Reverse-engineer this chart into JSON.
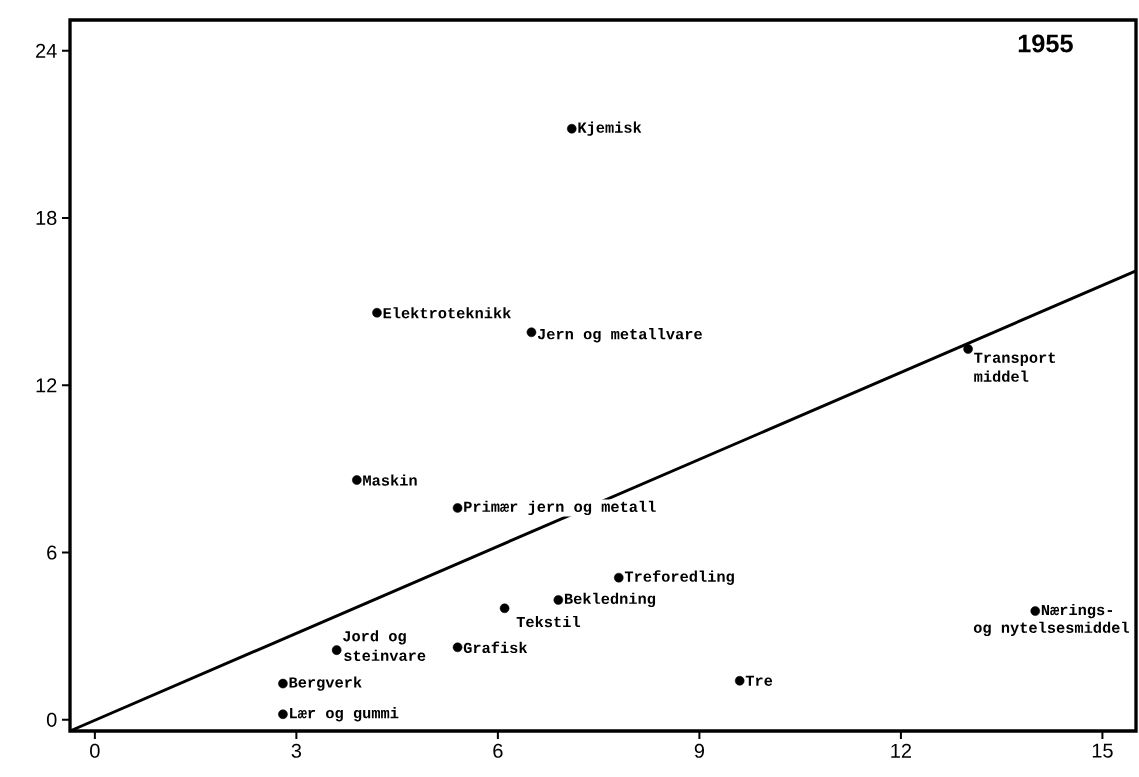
{
  "chart_data": {
    "type": "scatter",
    "title": "1955",
    "xlim": [
      -0.37,
      15.5
    ],
    "ylim": [
      -0.4,
      25.1
    ],
    "xticks": [
      0,
      3,
      6,
      9,
      12,
      15
    ],
    "yticks": [
      0,
      6,
      12,
      18,
      24
    ],
    "series": [
      {
        "color": "#000000",
        "marker": "circle",
        "x": [
          7.1,
          4.2,
          6.5,
          13.0,
          3.9,
          5.4,
          7.8,
          6.9,
          6.1,
          14.0,
          3.6,
          5.4,
          9.6,
          2.8,
          2.8
        ],
        "values": [
          21.2,
          14.6,
          13.9,
          13.3,
          8.6,
          7.6,
          5.1,
          4.3,
          4.0,
          3.9,
          2.5,
          2.6,
          1.4,
          1.3,
          0.2
        ]
      },
      {
        "type": "line",
        "color": "#000000",
        "marker": "none",
        "line_style": "solid",
        "x": [
          -0.37,
          15.5
        ],
        "values": [
          -0.4,
          16.1
        ]
      }
    ],
    "annotations": [
      {
        "text": "Kjemisk",
        "x": 7.1,
        "y": 21.2
      },
      {
        "text": "Elektroteknikk",
        "x": 4.2,
        "y": 14.6
      },
      {
        "text": "Jern og metallvare",
        "x": 6.5,
        "y": 13.9
      },
      {
        "text": "Transport",
        "x": 13.0,
        "y": 13.3
      },
      {
        "text": "middel",
        "x": 13.0,
        "y": 13.3
      },
      {
        "text": "Maskin",
        "x": 3.9,
        "y": 8.6
      },
      {
        "text": "Primær jern og metall",
        "x": 5.4,
        "y": 7.6
      },
      {
        "text": "Treforedling",
        "x": 7.8,
        "y": 5.1
      },
      {
        "text": "Bekledning",
        "x": 6.9,
        "y": 4.3
      },
      {
        "text": "Tekstil",
        "x": 6.1,
        "y": 4.0
      },
      {
        "text": "Nærings-",
        "x": 14.0,
        "y": 3.9
      },
      {
        "text": "og nytelsesmiddel",
        "x": 14.0,
        "y": 3.9
      },
      {
        "text": "Jord og",
        "x": 3.6,
        "y": 2.5
      },
      {
        "text": "steinvare",
        "x": 3.6,
        "y": 2.5
      },
      {
        "text": "Grafisk",
        "x": 5.4,
        "y": 2.6
      },
      {
        "text": "Tre",
        "x": 9.6,
        "y": 1.4
      },
      {
        "text": "Bergverk",
        "x": 2.8,
        "y": 1.3
      },
      {
        "text": "Lær og gummi",
        "x": 2.8,
        "y": 0.2
      }
    ]
  }
}
